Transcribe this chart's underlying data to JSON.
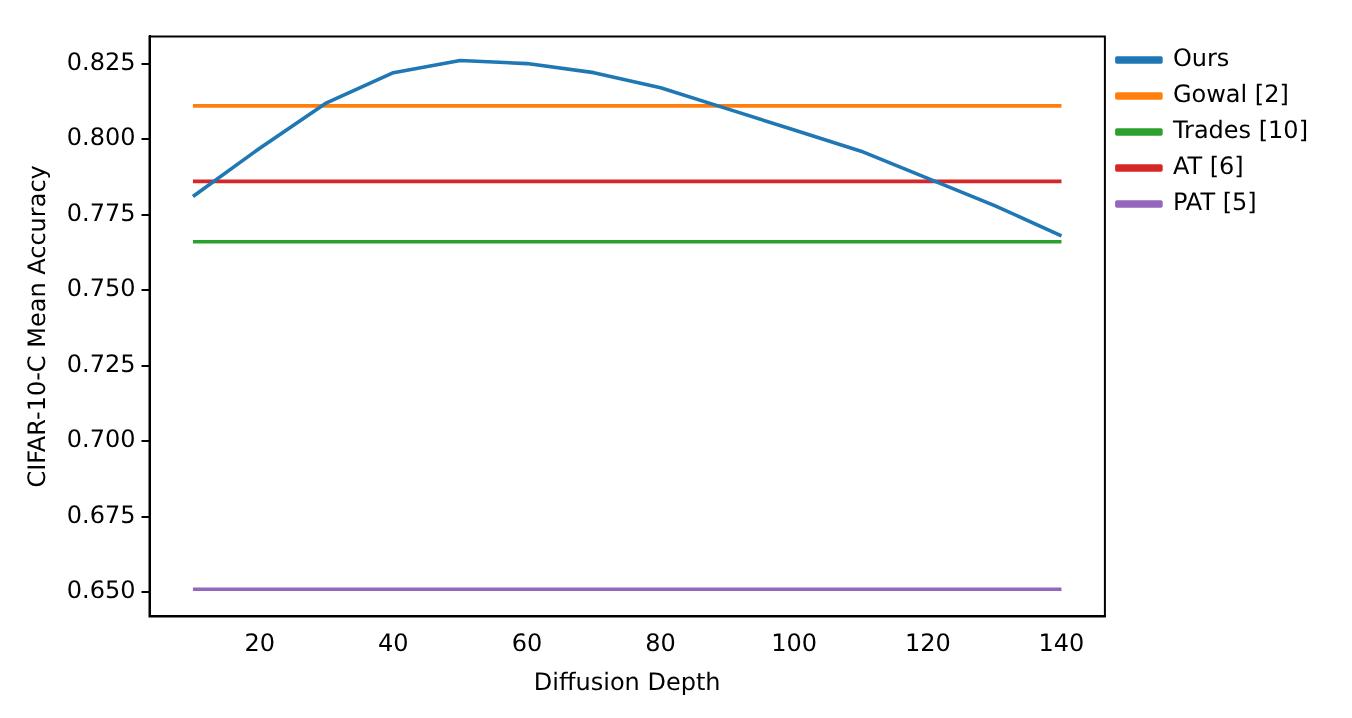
{
  "chart_data": {
    "type": "line",
    "xlabel": "Diffusion Depth",
    "ylabel": "CIFAR-10-C Mean Accuracy",
    "x": [
      10,
      20,
      30,
      40,
      50,
      60,
      70,
      80,
      90,
      100,
      110,
      120,
      130,
      140
    ],
    "series": [
      {
        "name": "Ours",
        "color": "#1f77b4",
        "values": [
          0.781,
          0.797,
          0.812,
          0.822,
          0.826,
          0.825,
          0.822,
          0.817,
          0.81,
          0.803,
          0.796,
          0.787,
          0.778,
          0.768
        ]
      },
      {
        "name": "Gowal [2]",
        "color": "#ff7f0e",
        "values": [
          0.811,
          0.811,
          0.811,
          0.811,
          0.811,
          0.811,
          0.811,
          0.811,
          0.811,
          0.811,
          0.811,
          0.811,
          0.811,
          0.811
        ]
      },
      {
        "name": "Trades [10]",
        "color": "#2ca02c",
        "values": [
          0.766,
          0.766,
          0.766,
          0.766,
          0.766,
          0.766,
          0.766,
          0.766,
          0.766,
          0.766,
          0.766,
          0.766,
          0.766,
          0.766
        ]
      },
      {
        "name": "AT [6]",
        "color": "#d62728",
        "values": [
          0.786,
          0.786,
          0.786,
          0.786,
          0.786,
          0.786,
          0.786,
          0.786,
          0.786,
          0.786,
          0.786,
          0.786,
          0.786,
          0.786
        ]
      },
      {
        "name": "PAT [5]",
        "color": "#9467bd",
        "values": [
          0.651,
          0.651,
          0.651,
          0.651,
          0.651,
          0.651,
          0.651,
          0.651,
          0.651,
          0.651,
          0.651,
          0.651,
          0.651,
          0.651
        ]
      }
    ],
    "xlim": [
      3.5,
      146.5
    ],
    "xticks": [
      20,
      40,
      60,
      80,
      100,
      120,
      140
    ],
    "ylim": [
      0.642,
      0.834
    ],
    "yticks": [
      {
        "value": 0.65,
        "label": "0.650"
      },
      {
        "value": 0.675,
        "label": "0.675"
      },
      {
        "value": 0.7,
        "label": "0.700"
      },
      {
        "value": 0.725,
        "label": "0.725"
      },
      {
        "value": 0.75,
        "label": "0.750"
      },
      {
        "value": 0.775,
        "label": "0.775"
      },
      {
        "value": 0.8,
        "label": "0.800"
      },
      {
        "value": 0.825,
        "label": "0.825"
      }
    ],
    "grid": false,
    "legend": "top right",
    "marker": "none",
    "line_style": "solid"
  }
}
